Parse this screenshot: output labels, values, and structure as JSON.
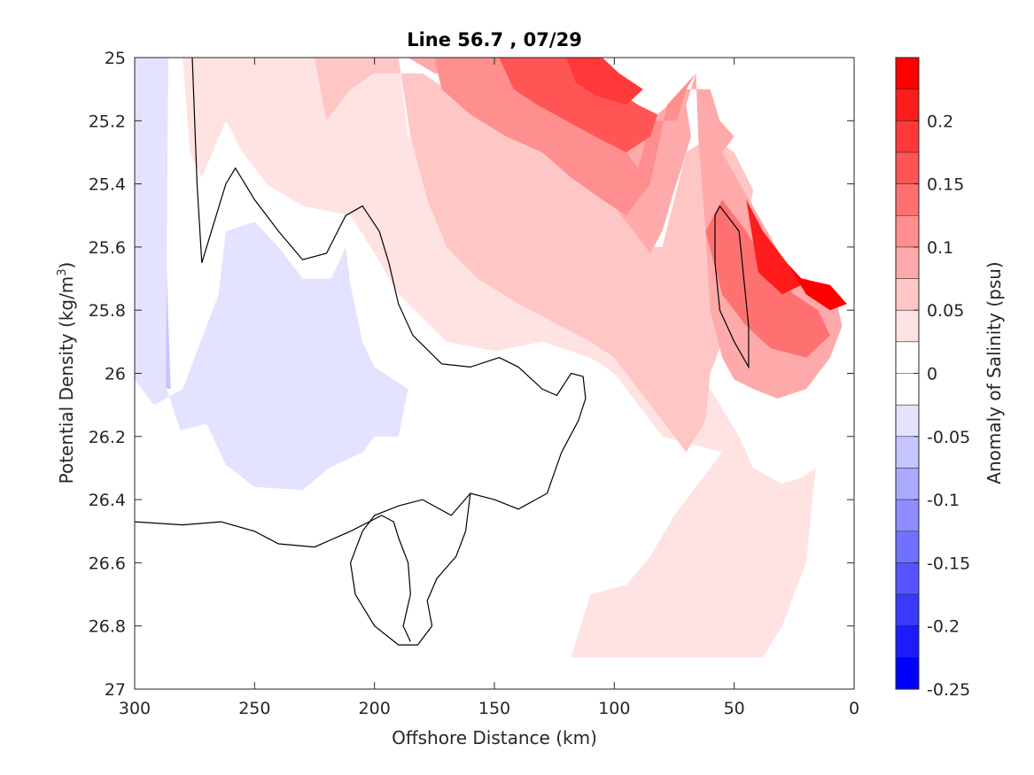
{
  "chart_data": {
    "type": "contour",
    "title": "Line 56.7 , 07/29",
    "xlabel": "Offshore Distance (km)",
    "ylabel_main": "Potential Density (kg/m",
    "ylabel_sup": "3",
    "ylabel_tail": ")",
    "colorbar_label": "Anomaly of Salinity (psu)",
    "xlim": [
      300,
      0
    ],
    "ylim": [
      25,
      27
    ],
    "x_reversed": true,
    "y_reversed": true,
    "x_ticks": [
      300,
      250,
      200,
      150,
      100,
      50,
      0
    ],
    "x_tick_labels": [
      "300",
      "250",
      "200",
      "150",
      "100",
      "50",
      "0"
    ],
    "y_ticks": [
      25,
      25.2,
      25.4,
      25.6,
      25.8,
      26,
      26.2,
      26.4,
      26.6,
      26.8,
      27
    ],
    "y_tick_labels": [
      "25",
      "25.2",
      "25.4",
      "25.6",
      "25.8",
      "26",
      "26.2",
      "26.4",
      "26.6",
      "26.8",
      "27"
    ],
    "color_limits": [
      -0.25,
      0.25
    ],
    "colorbar_ticks": [
      0.2,
      0.15,
      0.1,
      0.05,
      0,
      -0.05,
      -0.1,
      -0.15,
      -0.2,
      -0.25
    ],
    "colorbar_tick_labels": [
      "0.2",
      "0.15",
      "0.1",
      "0.05",
      "0",
      "-0.05",
      "-0.1",
      "-0.15",
      "-0.2",
      "-0.25"
    ],
    "colorbar_colors": [
      "#ff0000",
      "#ff1c1c",
      "#ff3939",
      "#ff5555",
      "#ff7171",
      "#ff8e8e",
      "#ffaaaa",
      "#ffc6c6",
      "#ffe3e3",
      "#ffffff",
      "#ffffff",
      "#e3e3ff",
      "#c6c6ff",
      "#aaaaff",
      "#8e8eff",
      "#7171ff",
      "#5555ff",
      "#3939ff",
      "#1c1cff",
      "#0000ff"
    ],
    "contour_level_line": 0,
    "regions": [
      {
        "level": -0.075,
        "color": "#c6c6ff",
        "points": [
          [
            296,
            25
          ],
          [
            286,
            25
          ],
          [
            287,
            25.6
          ],
          [
            285,
            26.05
          ],
          [
            296,
            26.04
          ]
        ]
      },
      {
        "level": -0.025,
        "color": "#e3e3ff",
        "points": [
          [
            300,
            25
          ],
          [
            286,
            25
          ],
          [
            287,
            26.04
          ],
          [
            281,
            26.18
          ],
          [
            270,
            26.16
          ],
          [
            262,
            26.29
          ],
          [
            250,
            26.36
          ],
          [
            230,
            26.37
          ],
          [
            219,
            26.3
          ],
          [
            205,
            26.25
          ],
          [
            200,
            26.2
          ],
          [
            190,
            26.2
          ],
          [
            186,
            26.05
          ],
          [
            200,
            25.98
          ],
          [
            205,
            25.9
          ],
          [
            210,
            25.72
          ],
          [
            212,
            25.6
          ],
          [
            218,
            25.7
          ],
          [
            230,
            25.7
          ],
          [
            240,
            25.6
          ],
          [
            250,
            25.52
          ],
          [
            262,
            25.55
          ],
          [
            265,
            25.75
          ],
          [
            275,
            25.95
          ],
          [
            280,
            26.05
          ],
          [
            292,
            26.1
          ],
          [
            300,
            26.02
          ]
        ]
      },
      {
        "level": 0.025,
        "color": "#ffe3e3",
        "points": [
          [
            280,
            25
          ],
          [
            190,
            25
          ],
          [
            186,
            25.25
          ],
          [
            170,
            25.3
          ],
          [
            152,
            25.38
          ],
          [
            138,
            25.48
          ],
          [
            120,
            25.55
          ],
          [
            107,
            25.65
          ],
          [
            100,
            25.75
          ],
          [
            86,
            25.87
          ],
          [
            72,
            25.96
          ],
          [
            60,
            26.05
          ],
          [
            48,
            26.2
          ],
          [
            42,
            26.3
          ],
          [
            30,
            26.35
          ],
          [
            22,
            26.33
          ],
          [
            16,
            26.3
          ],
          [
            20,
            26.6
          ],
          [
            30,
            26.8
          ],
          [
            38,
            26.9
          ],
          [
            118,
            26.9
          ],
          [
            110,
            26.7
          ],
          [
            95,
            26.67
          ],
          [
            85,
            26.58
          ],
          [
            75,
            26.45
          ],
          [
            65,
            26.35
          ],
          [
            55,
            26.25
          ],
          [
            80,
            26.2
          ],
          [
            90,
            26.1
          ],
          [
            100,
            26
          ],
          [
            110,
            25.95
          ],
          [
            130,
            25.9
          ],
          [
            150,
            25.93
          ],
          [
            170,
            25.9
          ],
          [
            190,
            25.75
          ],
          [
            200,
            25.62
          ],
          [
            210,
            25.5
          ],
          [
            230,
            25.47
          ],
          [
            245,
            25.4
          ],
          [
            255,
            25.3
          ],
          [
            262,
            25.2
          ],
          [
            272,
            25.38
          ],
          [
            277,
            25.3
          ]
        ]
      },
      {
        "level": 0.075,
        "color": "#ffc6c6",
        "points": [
          [
            225,
            25
          ],
          [
            190,
            25
          ],
          [
            185,
            25.25
          ],
          [
            178,
            25.45
          ],
          [
            170,
            25.6
          ],
          [
            157,
            25.7
          ],
          [
            140,
            25.78
          ],
          [
            125,
            25.84
          ],
          [
            110,
            25.9
          ],
          [
            100,
            25.95
          ],
          [
            90,
            26.05
          ],
          [
            80,
            26.15
          ],
          [
            70,
            26.25
          ],
          [
            62,
            26.15
          ],
          [
            60,
            26
          ],
          [
            55,
            25.9
          ],
          [
            50,
            25.7
          ],
          [
            46,
            25.55
          ],
          [
            42,
            25.42
          ],
          [
            50,
            25.3
          ],
          [
            60,
            25.25
          ],
          [
            70,
            25.3
          ],
          [
            75,
            25.45
          ],
          [
            80,
            25.6
          ],
          [
            86,
            25.6
          ],
          [
            100,
            25.4
          ],
          [
            120,
            25.3
          ],
          [
            150,
            25.2
          ],
          [
            170,
            25.1
          ],
          [
            180,
            25.05
          ],
          [
            200,
            25.05
          ],
          [
            210,
            25.1
          ],
          [
            220,
            25.2
          ]
        ]
      },
      {
        "level": 0.125,
        "color": "#ffaaaa",
        "points": [
          [
            186,
            25
          ],
          [
            150,
            25
          ],
          [
            145,
            25.18
          ],
          [
            130,
            25.28
          ],
          [
            115,
            25.35
          ],
          [
            102,
            25.45
          ],
          [
            92,
            25.55
          ],
          [
            85,
            25.62
          ],
          [
            80,
            25.55
          ],
          [
            75,
            25.42
          ],
          [
            72,
            25.35
          ],
          [
            68,
            25.25
          ],
          [
            70,
            25.15
          ],
          [
            66,
            25.05
          ],
          [
            65,
            25.25
          ],
          [
            62,
            25.55
          ],
          [
            60,
            25.8
          ],
          [
            55,
            25.95
          ],
          [
            50,
            26.02
          ],
          [
            42,
            26.05
          ],
          [
            32,
            26.08
          ],
          [
            20,
            26.05
          ],
          [
            10,
            25.95
          ],
          [
            5,
            25.85
          ],
          [
            8,
            25.75
          ],
          [
            20,
            25.7
          ],
          [
            25,
            25.7
          ],
          [
            40,
            25.5
          ],
          [
            55,
            25.3
          ],
          [
            50,
            25.25
          ],
          [
            56,
            25.2
          ],
          [
            60,
            25.1
          ],
          [
            70,
            25.1
          ],
          [
            85,
            25.2
          ],
          [
            100,
            25.15
          ],
          [
            120,
            25.1
          ],
          [
            150,
            25.05
          ],
          [
            175,
            25.05
          ]
        ]
      },
      {
        "level": 0.175,
        "color": "#ff8e8e",
        "points": [
          [
            175,
            25
          ],
          [
            140,
            25
          ],
          [
            132,
            25.08
          ],
          [
            120,
            25.18
          ],
          [
            110,
            25.22
          ],
          [
            100,
            25.25
          ],
          [
            90,
            25.35
          ],
          [
            85,
            25.2
          ],
          [
            74,
            25.2
          ],
          [
            70,
            25.1
          ],
          [
            66,
            25.05
          ],
          [
            78,
            25.15
          ],
          [
            85,
            25.4
          ],
          [
            95,
            25.5
          ],
          [
            105,
            25.45
          ],
          [
            118,
            25.38
          ],
          [
            130,
            25.3
          ],
          [
            145,
            25.25
          ],
          [
            160,
            25.18
          ],
          [
            172,
            25.1
          ]
        ]
      },
      {
        "level": 0.225,
        "color": "#ff5555",
        "points": [
          [
            148,
            25
          ],
          [
            120,
            25
          ],
          [
            108,
            25.05
          ],
          [
            100,
            25.1
          ],
          [
            90,
            25.15
          ],
          [
            82,
            25.18
          ],
          [
            85,
            25.25
          ],
          [
            95,
            25.3
          ],
          [
            108,
            25.25
          ],
          [
            120,
            25.2
          ],
          [
            132,
            25.15
          ],
          [
            142,
            25.1
          ]
        ]
      },
      {
        "level": 0.275,
        "color": "#ff3939",
        "points": [
          [
            120,
            25
          ],
          [
            105,
            25
          ],
          [
            98,
            25.05
          ],
          [
            88,
            25.1
          ],
          [
            95,
            25.15
          ],
          [
            108,
            25.12
          ],
          [
            116,
            25.08
          ]
        ]
      },
      {
        "level": 0.15,
        "color": "#ff7171",
        "points": [
          [
            62,
            25.55
          ],
          [
            55,
            25.45
          ],
          [
            45,
            25.55
          ],
          [
            35,
            25.68
          ],
          [
            25,
            25.75
          ],
          [
            15,
            25.8
          ],
          [
            10,
            25.88
          ],
          [
            20,
            25.95
          ],
          [
            35,
            25.92
          ],
          [
            45,
            25.85
          ],
          [
            55,
            25.75
          ]
        ]
      },
      {
        "level": 0.25,
        "color": "#ff1c1c",
        "points": [
          [
            45,
            25.45
          ],
          [
            38,
            25.55
          ],
          [
            28,
            25.65
          ],
          [
            22,
            25.72
          ],
          [
            30,
            25.75
          ],
          [
            40,
            25.68
          ]
        ]
      },
      {
        "level": 0.3,
        "color": "#ff0000",
        "points": [
          [
            28,
            25.65
          ],
          [
            22,
            25.7
          ],
          [
            10,
            25.72
          ],
          [
            3,
            25.78
          ],
          [
            10,
            25.8
          ],
          [
            20,
            25.75
          ]
        ]
      }
    ],
    "contour_zero_lines": [
      {
        "points": [
          [
            276,
            25
          ],
          [
            274,
            25.4
          ],
          [
            272,
            25.65
          ],
          [
            268,
            25.55
          ],
          [
            262,
            25.4
          ],
          [
            258,
            25.35
          ],
          [
            250,
            25.45
          ],
          [
            240,
            25.55
          ],
          [
            230,
            25.64
          ],
          [
            220,
            25.62
          ],
          [
            212,
            25.5
          ],
          [
            205,
            25.47
          ],
          [
            198,
            25.55
          ],
          [
            194,
            25.65
          ],
          [
            190,
            25.78
          ],
          [
            184,
            25.88
          ],
          [
            172,
            25.97
          ],
          [
            160,
            25.98
          ],
          [
            148,
            25.95
          ],
          [
            140,
            25.98
          ],
          [
            130,
            26.05
          ],
          [
            124,
            26.07
          ],
          [
            118,
            26.0
          ],
          [
            113,
            26.01
          ],
          [
            112,
            26.08
          ],
          [
            115,
            26.15
          ],
          [
            122,
            26.25
          ],
          [
            128,
            26.38
          ],
          [
            140,
            26.43
          ],
          [
            150,
            26.4
          ],
          [
            160,
            26.38
          ],
          [
            162,
            26.5
          ],
          [
            166,
            26.58
          ],
          [
            174,
            26.65
          ],
          [
            178,
            26.72
          ],
          [
            176,
            26.8
          ],
          [
            182,
            26.86
          ],
          [
            190,
            26.86
          ],
          [
            200,
            26.8
          ],
          [
            208,
            26.7
          ],
          [
            210,
            26.6
          ],
          [
            205,
            26.5
          ],
          [
            200,
            26.45
          ],
          [
            190,
            26.42
          ],
          [
            180,
            26.4
          ],
          [
            168,
            26.45
          ],
          [
            160,
            26.38
          ]
        ]
      },
      {
        "points": [
          [
            56,
            25.47
          ],
          [
            48,
            25.55
          ],
          [
            46,
            25.7
          ],
          [
            44,
            25.85
          ],
          [
            44,
            25.98
          ],
          [
            50,
            25.9
          ],
          [
            56,
            25.8
          ],
          [
            58,
            25.65
          ],
          [
            58,
            25.5
          ],
          [
            56,
            25.47
          ]
        ]
      },
      {
        "points": [
          [
            300,
            26.47
          ],
          [
            280,
            26.48
          ],
          [
            264,
            26.47
          ],
          [
            250,
            26.5
          ],
          [
            240,
            26.54
          ],
          [
            225,
            26.55
          ],
          [
            210,
            26.5
          ],
          [
            197,
            26.45
          ],
          [
            192,
            26.47
          ],
          [
            190,
            26.52
          ],
          [
            186,
            26.6
          ],
          [
            185,
            26.7
          ],
          [
            188,
            26.8
          ],
          [
            185,
            26.85
          ]
        ]
      }
    ]
  }
}
